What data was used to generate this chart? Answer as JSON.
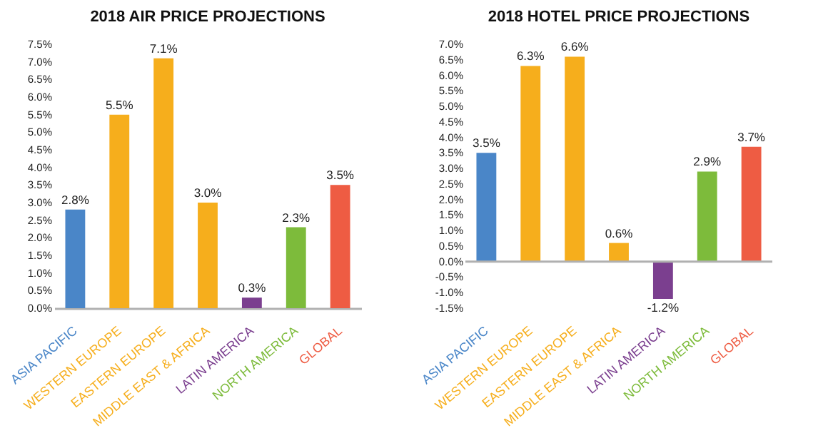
{
  "chart_data": [
    {
      "type": "bar",
      "title": "2018 AIR PRICE PROJECTIONS",
      "categories": [
        "ASIA PACIFIC",
        "WESTERN EUROPE",
        "EASTERN EUROPE",
        "MIDDLE EAST & AFRICA",
        "LATIN AMERICA",
        "NORTH AMERICA",
        "GLOBAL"
      ],
      "values": [
        2.8,
        5.5,
        7.1,
        3.0,
        0.3,
        2.3,
        3.5
      ],
      "value_labels": [
        "2.8%",
        "5.5%",
        "7.1%",
        "3.0%",
        "0.3%",
        "2.3%",
        "3.5%"
      ],
      "colors": [
        "#4a86c8",
        "#f6ae1c",
        "#f6ae1c",
        "#f6ae1c",
        "#7b3f8f",
        "#7dbb3b",
        "#ee5c43"
      ],
      "ylim": [
        0,
        7.5
      ],
      "yticks": [
        {
          "value": 0,
          "label": "0.0%"
        },
        {
          "value": 0.5,
          "label": "0.5%"
        },
        {
          "value": 1,
          "label": "1.0%"
        },
        {
          "value": 1.5,
          "label": "1.5%"
        },
        {
          "value": 2,
          "label": "2.0%"
        },
        {
          "value": 2.5,
          "label": "2.5%"
        },
        {
          "value": 3,
          "label": "3.0%"
        },
        {
          "value": 3.5,
          "label": "3.5%"
        },
        {
          "value": 4,
          "label": "4.0%"
        },
        {
          "value": 4.5,
          "label": "4.5%"
        },
        {
          "value": 5,
          "label": "5.0%"
        },
        {
          "value": 5.5,
          "label": "5.5%"
        },
        {
          "value": 6,
          "label": "6.0%"
        },
        {
          "value": 6.5,
          "label": "6.5%"
        },
        {
          "value": 7,
          "label": "7.0%"
        },
        {
          "value": 7.5,
          "label": "7.5%"
        }
      ]
    },
    {
      "type": "bar",
      "title": "2018 HOTEL PRICE PROJECTIONS",
      "categories": [
        "ASIA PACIFIC",
        "WESTERN EUROPE",
        "EASTERN EUROPE",
        "MIDDLE EAST & AFRICA",
        "LATIN AMERICA",
        "NORTH AMERICA",
        "GLOBAL"
      ],
      "values": [
        3.5,
        6.3,
        6.6,
        0.6,
        -1.2,
        2.9,
        3.7
      ],
      "value_labels": [
        "3.5%",
        "6.3%",
        "6.6%",
        "0.6%",
        "-1.2%",
        "2.9%",
        "3.7%"
      ],
      "colors": [
        "#4a86c8",
        "#f6ae1c",
        "#f6ae1c",
        "#f6ae1c",
        "#7b3f8f",
        "#7dbb3b",
        "#ee5c43"
      ],
      "ylim": [
        -1.5,
        7.0
      ],
      "yticks": [
        {
          "value": -1.5,
          "label": "-1.5%"
        },
        {
          "value": -1,
          "label": "-1.0%"
        },
        {
          "value": -0.5,
          "label": "-0.5%"
        },
        {
          "value": 0,
          "label": "0.0%"
        },
        {
          "value": 0.5,
          "label": "0.5%"
        },
        {
          "value": 1,
          "label": "1.0%"
        },
        {
          "value": 1.5,
          "label": "1.5%"
        },
        {
          "value": 2,
          "label": "2.0%"
        },
        {
          "value": 2.5,
          "label": "2.5%"
        },
        {
          "value": 3,
          "label": "3.0%"
        },
        {
          "value": 3.5,
          "label": "3.5%"
        },
        {
          "value": 4,
          "label": "4.0%"
        },
        {
          "value": 4.5,
          "label": "4.5%"
        },
        {
          "value": 5,
          "label": "5.0%"
        },
        {
          "value": 5.5,
          "label": "5.5%"
        },
        {
          "value": 6,
          "label": "6.0%"
        },
        {
          "value": 6.5,
          "label": "6.5%"
        },
        {
          "value": 7,
          "label": "7.0%"
        }
      ],
      "ref_lines": [
        {
          "axis": "y",
          "value": 0,
          "color": "#b0b0b0"
        }
      ]
    }
  ]
}
